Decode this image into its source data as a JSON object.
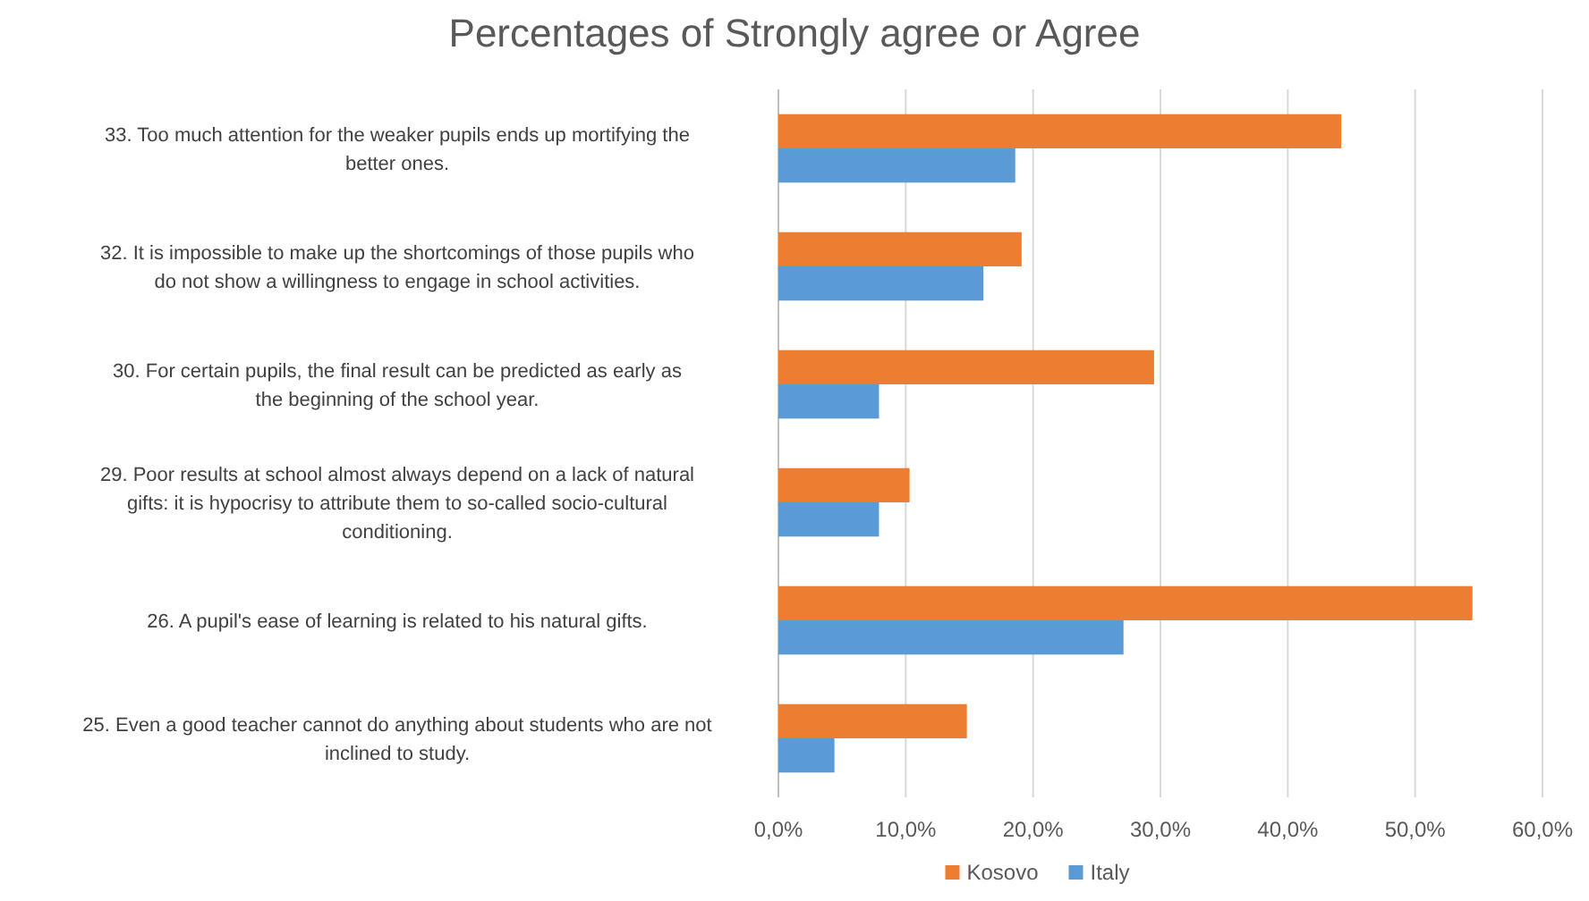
{
  "chart_data": {
    "type": "bar",
    "orientation": "horizontal",
    "title": "Percentages of Strongly agree or Agree",
    "categories": [
      "33.  Too much attention for the weaker pupils ends up mortifying the better ones.",
      "32.  It is impossible to make up the shortcomings of those pupils who do not show a willingness to engage in school activities.",
      "30.  For certain pupils, the final result can be predicted as early as the beginning of the school year.",
      "29.  Poor results at school almost always depend on a lack of natural gifts: it is hypocrisy to attribute them to so-called socio-cultural conditioning.",
      "26.  A pupil's ease of learning is related to his natural gifts.",
      "25.  Even a good teacher cannot do anything about students who are not inclined to study."
    ],
    "series": [
      {
        "name": "Kosovo",
        "color": "#ed7d31",
        "values": [
          44.2,
          19.1,
          29.5,
          10.3,
          54.5,
          14.8
        ]
      },
      {
        "name": "Italy",
        "color": "#5b9bd5",
        "values": [
          18.6,
          16.1,
          7.9,
          7.9,
          27.1,
          4.4
        ]
      }
    ],
    "xlim": [
      0,
      60
    ],
    "xticks": [
      {
        "value": 0,
        "label": "0,0%"
      },
      {
        "value": 10,
        "label": "10,0%"
      },
      {
        "value": 20,
        "label": "20,0%"
      },
      {
        "value": 30,
        "label": "30,0%"
      },
      {
        "value": 40,
        "label": "40,0%"
      },
      {
        "value": 50,
        "label": "50,0%"
      },
      {
        "value": 60,
        "label": "60,0%"
      }
    ],
    "grid": "x",
    "legend": "bottom"
  }
}
